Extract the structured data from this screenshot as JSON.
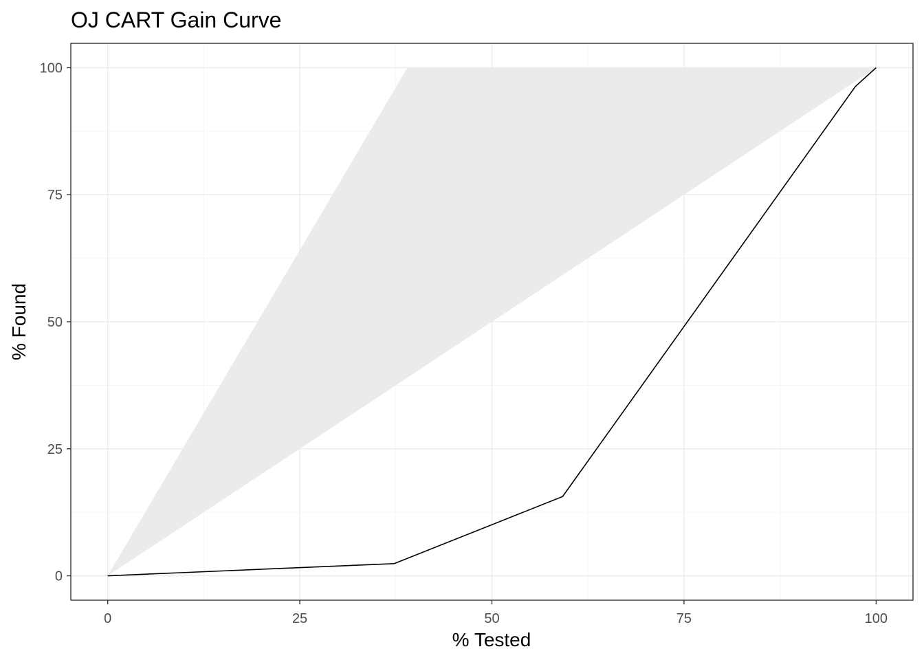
{
  "chart_data": {
    "type": "line",
    "title": "OJ CART Gain Curve",
    "xlabel": "% Tested",
    "ylabel": "% Found",
    "xlim": [
      -4.8,
      104.8
    ],
    "ylim": [
      -4.8,
      104.8
    ],
    "xticks": [
      0,
      25,
      50,
      75,
      100
    ],
    "yticks": [
      0,
      25,
      50,
      75,
      100
    ],
    "x_tick_labels": [
      "0",
      "25",
      "50",
      "75",
      "100"
    ],
    "y_tick_labels": [
      "0",
      "25",
      "50",
      "75",
      "100"
    ],
    "grid": true,
    "legend": "none",
    "band": {
      "description_free": true,
      "points": [
        [
          0,
          0
        ],
        [
          39,
          100
        ],
        [
          100,
          100
        ],
        [
          100,
          100
        ],
        [
          0,
          0
        ]
      ],
      "upper": [
        [
          0,
          0
        ],
        [
          39,
          100
        ],
        [
          100,
          100
        ]
      ],
      "lower": [
        [
          0,
          0
        ],
        [
          100,
          100
        ]
      ],
      "color": "#ebebeb"
    },
    "series": [
      {
        "x": [
          0,
          37.3,
          59.2,
          97.3,
          100
        ],
        "y": [
          0,
          2.4,
          15.6,
          96.3,
          100
        ],
        "color": "#000000"
      }
    ],
    "colors": {
      "panel_border": "#333333",
      "grid_major": "#ebebeb",
      "grid_minor": "#f5f5f5",
      "band": "#ebebeb",
      "line": "#000000",
      "tick_label": "#4d4d4d"
    }
  }
}
